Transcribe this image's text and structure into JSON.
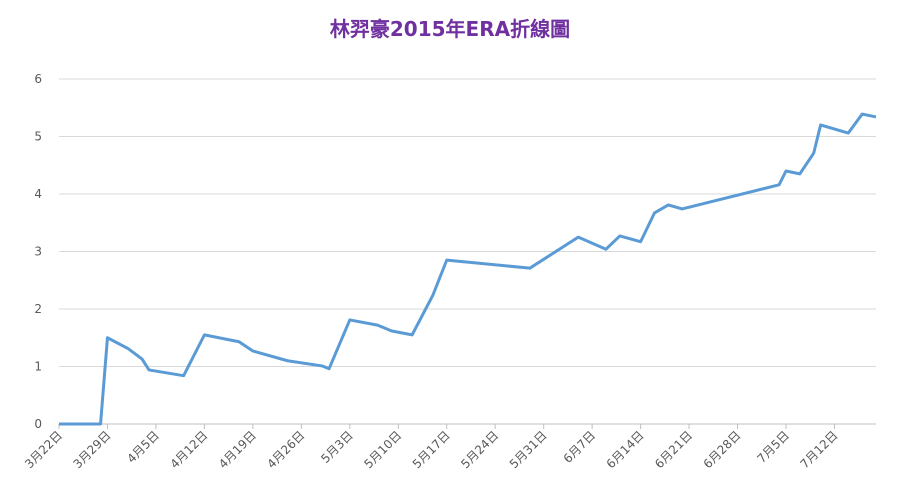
{
  "chart_data": {
    "type": "line",
    "title": "林羿豪2015年ERA折線圖",
    "x": [
      "3月22日",
      "3月28日",
      "3月29日",
      "4月1日",
      "4月3日",
      "4月4日",
      "4月9日",
      "4月12日",
      "4月17日",
      "4月19日",
      "4月24日",
      "4月29日",
      "4月30日",
      "5月3日",
      "5月7日",
      "5月9日",
      "5月12日",
      "5月15日",
      "5月17日",
      "5月29日",
      "6月5日",
      "6月9日",
      "6月11日",
      "6月14日",
      "6月16日",
      "6月18日",
      "6月20日",
      "7月4日",
      "7月5日",
      "7月7日",
      "7月9日",
      "7月10日",
      "7月14日",
      "7月16日",
      "7月18日"
    ],
    "series": [
      {
        "name": "ERA",
        "color": "#5b9bd5",
        "values": [
          0,
          0,
          1.5,
          1.31,
          1.13,
          0.94,
          0.84,
          1.55,
          1.43,
          1.27,
          1.1,
          1.01,
          0.96,
          1.81,
          1.72,
          1.62,
          1.55,
          2.24,
          2.85,
          2.71,
          3.25,
          3.04,
          3.27,
          3.17,
          3.67,
          3.81,
          3.74,
          4.16,
          4.4,
          4.35,
          4.71,
          5.2,
          5.06,
          5.39,
          5.34
        ]
      }
    ],
    "xlim": [
      "3月22日",
      "7月18日"
    ],
    "xticks": [
      "3月22日",
      "3月29日",
      "4月5日",
      "4月12日",
      "4月19日",
      "4月26日",
      "5月3日",
      "5月10日",
      "5月17日",
      "5月24日",
      "5月31日",
      "6月7日",
      "6月14日",
      "6月21日",
      "6月28日",
      "7月5日",
      "7月12日"
    ],
    "ylim": [
      0,
      6
    ],
    "yticks": [
      0,
      1,
      2,
      3,
      4,
      5,
      6
    ],
    "grid": true,
    "legend": false
  }
}
